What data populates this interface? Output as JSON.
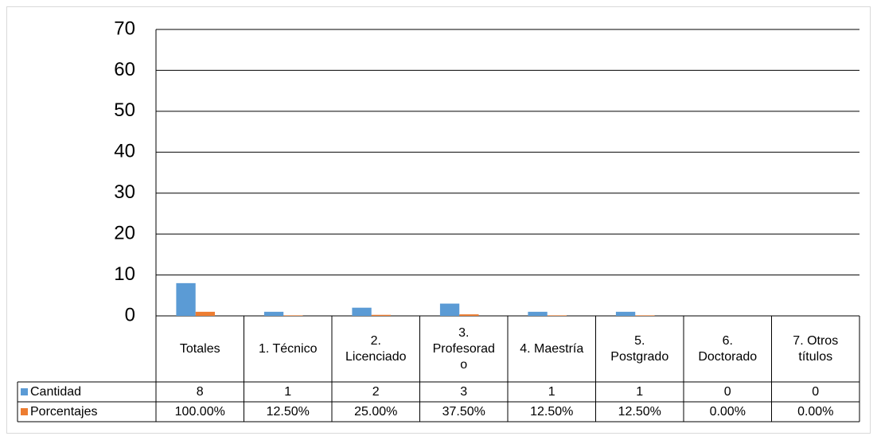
{
  "chart_data": {
    "type": "bar",
    "categories": [
      "Totales",
      "1. Técnico",
      "2. Licenciado",
      "3. Profesorado",
      "4. Maestría",
      "5. Postgrado",
      "6. Doctorado",
      "7. Otros títulos"
    ],
    "series": [
      {
        "name": "Cantidad",
        "color": "#5b9bd5",
        "values": [
          8,
          1,
          2,
          3,
          1,
          1,
          0,
          0
        ]
      },
      {
        "name": "Porcentajes",
        "color": "#ed7d31",
        "values": [
          1,
          0.125,
          0.25,
          0.375,
          0.125,
          0.125,
          0,
          0
        ],
        "value_labels": [
          "100.00%",
          "12.50%",
          "25.00%",
          "37.50%",
          "12.50%",
          "12.50%",
          "0.00%",
          "0.00%"
        ]
      }
    ],
    "ylim": [
      0,
      70
    ],
    "yticks": [
      0,
      10,
      20,
      30,
      40,
      50,
      60,
      70
    ],
    "grid": true
  }
}
